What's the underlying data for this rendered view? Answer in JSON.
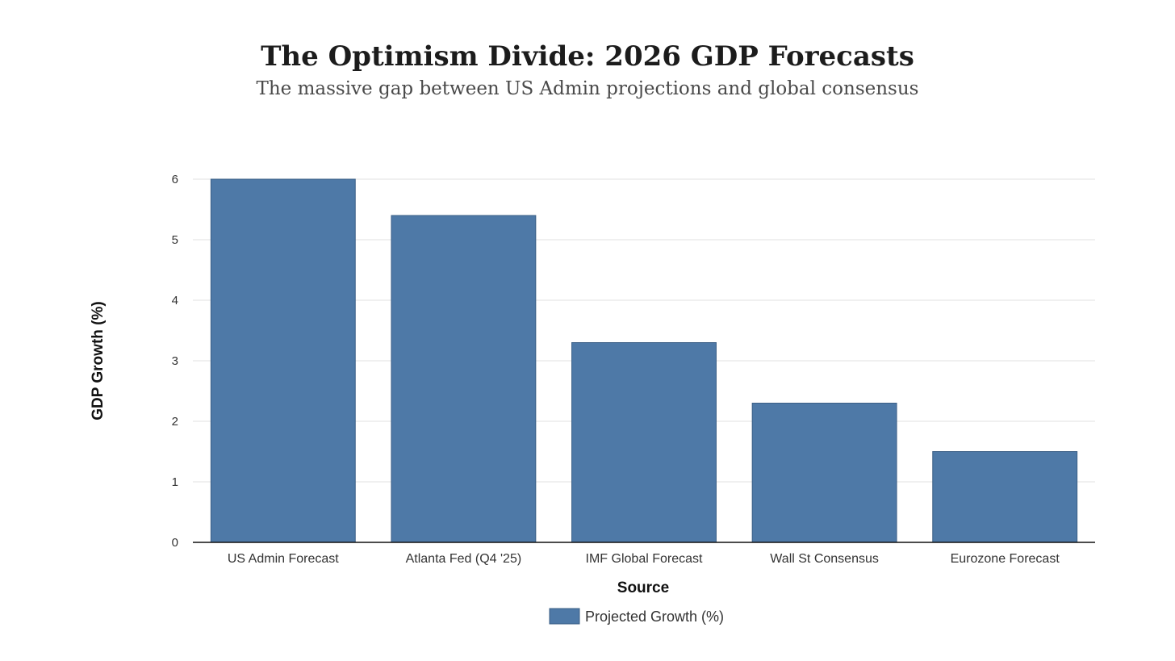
{
  "chart_data": {
    "type": "bar",
    "title": "The Optimism Divide: 2026 GDP Forecasts",
    "subtitle": "The massive gap between US Admin projections and global consensus",
    "categories": [
      "US Admin Forecast",
      "Atlanta Fed (Q4 '25)",
      "IMF Global Forecast",
      "Wall St Consensus",
      "Eurozone Forecast"
    ],
    "series": [
      {
        "name": "Projected Growth (%)",
        "values": [
          6.0,
          5.4,
          3.3,
          2.3,
          1.5
        ],
        "color": "#4e79a7"
      }
    ],
    "xlabel": "Source",
    "ylabel": "GDP Growth (%)",
    "ylim": [
      0,
      6
    ],
    "yticks": [
      0,
      1,
      2,
      3,
      4,
      5,
      6
    ],
    "grid": true,
    "legend_position": "bottom-center"
  }
}
